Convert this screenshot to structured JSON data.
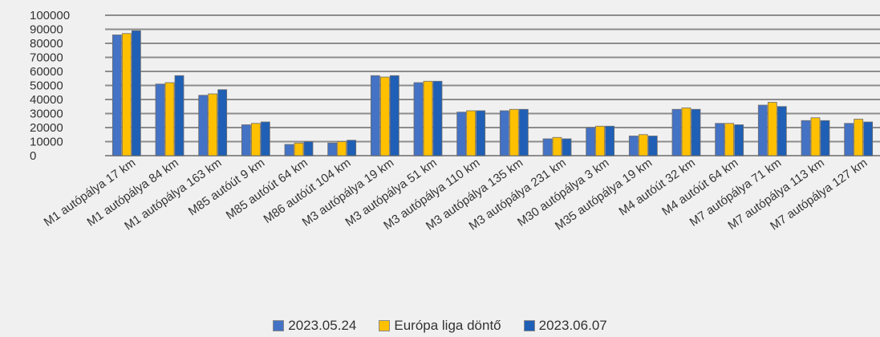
{
  "chart_data": {
    "type": "bar",
    "title": "",
    "xlabel": "",
    "ylabel": "",
    "ylim": [
      0,
      100000
    ],
    "yticks": [
      "0",
      "10000",
      "20000",
      "30000",
      "40000",
      "50000",
      "60000",
      "70000",
      "80000",
      "90000",
      "100000"
    ],
    "grid": true,
    "legend_position": "bottom",
    "categories": [
      "M1 autópálya 17 km",
      "M1 autópálya 84 km",
      "M1 autópálya 163 km",
      "M85 autóút 9 km",
      "M85 autóút 64 km",
      "M86 autóút 104 km",
      "M3 autópálya 19 km",
      "M3 autópálya 51 km",
      "M3 autópálya 110 km",
      "M3 autópálya 135 km",
      "M3 autópálya 231 km",
      "M30 autópálya 3 km",
      "M35 autópálya 19 km",
      "M4 autóút 32 km",
      "M4 autóút 64 km",
      "M7 autópálya 71 km",
      "M7 autópálya 113 km",
      "M7 autópálya 127 km"
    ],
    "series": [
      {
        "name": "2023.05.24",
        "color": "#4472c4",
        "values": [
          86000,
          51000,
          43000,
          22000,
          8000,
          9000,
          57000,
          52000,
          31000,
          32000,
          12000,
          20000,
          14000,
          33000,
          23000,
          36000,
          25000,
          23000
        ]
      },
      {
        "name": "Európa liga döntő",
        "color": "#ffc000",
        "values": [
          87000,
          52000,
          44000,
          23000,
          9000,
          10000,
          56000,
          53000,
          32000,
          33000,
          13000,
          21000,
          15000,
          34000,
          23000,
          38000,
          27000,
          26000
        ]
      },
      {
        "name": "2023.06.07",
        "color": "#1f5fb5",
        "values": [
          89000,
          57000,
          47000,
          24000,
          10000,
          11000,
          57000,
          53000,
          32000,
          33000,
          12000,
          21000,
          14000,
          33000,
          22000,
          35000,
          25000,
          24000
        ]
      }
    ]
  }
}
